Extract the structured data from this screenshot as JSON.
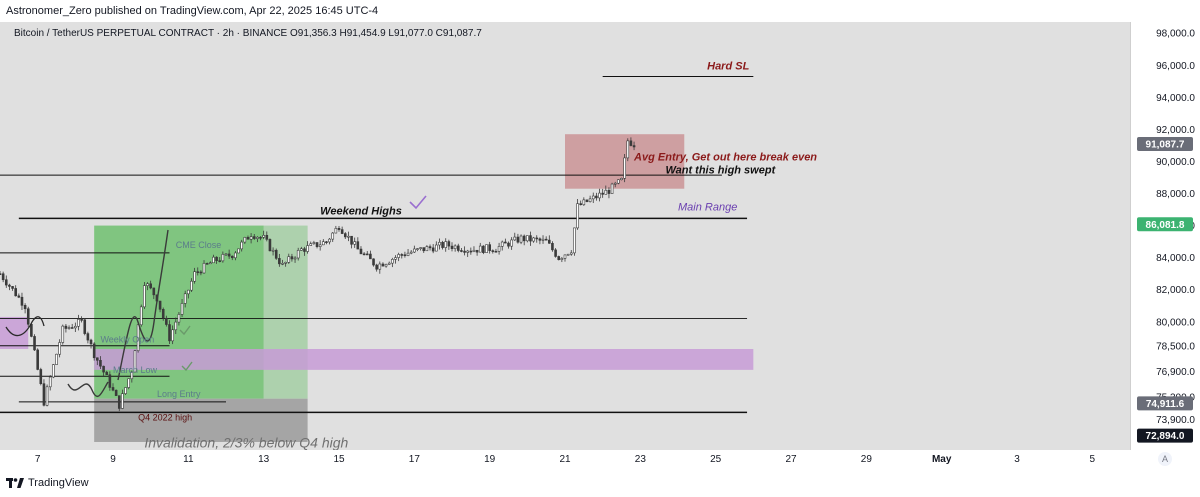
{
  "header": {
    "publisher_line": "Astronomer_Zero published on TradingView.com, Apr 22, 2025 16:45 UTC-4"
  },
  "chart_header": {
    "symbol_line": "Bitcoin / TetherUS PERPETUAL CONTRACT · 2h · BINANCE  O91,356.3  H91,454.9  L91,077.0  C91,087.7"
  },
  "footer": {
    "brand": "TradingView",
    "auto_label": "A"
  },
  "colors": {
    "chart_bg": "#e0e0e0",
    "candle": "#3a3a3a",
    "green_zone": "#6fbf6f",
    "red_zone": "#c98f91",
    "purple_zone": "#c79bd6",
    "gray_zone": "#9a9a9a",
    "annotation_red": "#8b1a1a",
    "annotation_purple": "#6a3fb0",
    "price_badge_dark": "#131722",
    "price_badge_gray": "#6a6d78",
    "price_badge_green": "#3cb371"
  },
  "chart_data": {
    "type": "candlestick",
    "title": "",
    "y_range": [
      72000,
      98700
    ],
    "y_ticks": [
      {
        "label": "98,000.0",
        "value": 98000
      },
      {
        "label": "96,000.0",
        "value": 96000
      },
      {
        "label": "94,000.0",
        "value": 94000
      },
      {
        "label": "92,000.0",
        "value": 92000
      },
      {
        "label": "90,000.0",
        "value": 90000
      },
      {
        "label": "88,000.0",
        "value": 88000
      },
      {
        "label": "86,000.0",
        "value": 86000
      },
      {
        "label": "84,000.0",
        "value": 84000
      },
      {
        "label": "82,000.0",
        "value": 82000
      },
      {
        "label": "80,000.0",
        "value": 80000
      },
      {
        "label": "78,500.0",
        "value": 78500
      },
      {
        "label": "76,900.0",
        "value": 76900
      },
      {
        "label": "75,300.0",
        "value": 75300
      },
      {
        "label": "73,900.0",
        "value": 73900
      }
    ],
    "price_badges": [
      {
        "label": "91,087.7",
        "value": 91087.7,
        "style": "gray"
      },
      {
        "label": "86,081.8",
        "value": 86081.8,
        "style": "green"
      },
      {
        "label": "74,911.6",
        "value": 74911.6,
        "style": "gray"
      },
      {
        "label": "72,894.0",
        "value": 72894.0,
        "style": "dark"
      }
    ],
    "x_range": [
      "2025-04-06",
      "2025-05-06"
    ],
    "x_ticks": [
      {
        "label": "7",
        "date": "2025-04-07"
      },
      {
        "label": "9",
        "date": "2025-04-09"
      },
      {
        "label": "11",
        "date": "2025-04-11"
      },
      {
        "label": "13",
        "date": "2025-04-13"
      },
      {
        "label": "15",
        "date": "2025-04-15"
      },
      {
        "label": "17",
        "date": "2025-04-17"
      },
      {
        "label": "19",
        "date": "2025-04-19"
      },
      {
        "label": "21",
        "date": "2025-04-21"
      },
      {
        "label": "23",
        "date": "2025-04-23"
      },
      {
        "label": "25",
        "date": "2025-04-25"
      },
      {
        "label": "27",
        "date": "2025-04-27"
      },
      {
        "label": "29",
        "date": "2025-04-29"
      },
      {
        "label": "May",
        "date": "2025-05-01"
      },
      {
        "label": "3",
        "date": "2025-05-03"
      },
      {
        "label": "5",
        "date": "2025-05-05"
      }
    ],
    "price_path": [
      [
        "2025-04-06T00:00",
        83000
      ],
      [
        "2025-04-06T16:00",
        81000
      ],
      [
        "2025-04-07T00:00",
        77000
      ],
      [
        "2025-04-07T04:00",
        75000
      ],
      [
        "2025-04-07T16:00",
        79500
      ],
      [
        "2025-04-08T04:00",
        80000
      ],
      [
        "2025-04-08T12:00",
        78000
      ],
      [
        "2025-04-08T20:00",
        76500
      ],
      [
        "2025-04-09T04:00",
        74800
      ],
      [
        "2025-04-09T12:00",
        77000
      ],
      [
        "2025-04-09T20:00",
        82500
      ],
      [
        "2025-04-10T04:00",
        81500
      ],
      [
        "2025-04-10T12:00",
        79000
      ],
      [
        "2025-04-10T20:00",
        81000
      ],
      [
        "2025-04-11T04:00",
        83000
      ],
      [
        "2025-04-11T16:00",
        83800
      ],
      [
        "2025-04-12T04:00",
        84200
      ],
      [
        "2025-04-12T16:00",
        85500
      ],
      [
        "2025-04-13T00:00",
        85200
      ],
      [
        "2025-04-13T12:00",
        83500
      ],
      [
        "2025-04-14T00:00",
        84500
      ],
      [
        "2025-04-14T16:00",
        85000
      ],
      [
        "2025-04-15T00:00",
        86000
      ],
      [
        "2025-04-15T12:00",
        84500
      ],
      [
        "2025-04-16T00:00",
        83500
      ],
      [
        "2025-04-16T16:00",
        84200
      ],
      [
        "2025-04-17T04:00",
        84500
      ],
      [
        "2025-04-17T20:00",
        84800
      ],
      [
        "2025-04-18T12:00",
        84500
      ],
      [
        "2025-04-19T04:00",
        84600
      ],
      [
        "2025-04-19T20:00",
        85200
      ],
      [
        "2025-04-20T12:00",
        85000
      ],
      [
        "2025-04-20T20:00",
        84000
      ],
      [
        "2025-04-21T04:00",
        84500
      ],
      [
        "2025-04-21T08:00",
        87200
      ],
      [
        "2025-04-21T20:00",
        87800
      ],
      [
        "2025-04-22T04:00",
        88200
      ],
      [
        "2025-04-22T12:00",
        88800
      ],
      [
        "2025-04-22T16:00",
        91300
      ],
      [
        "2025-04-22T20:00",
        91087.7
      ]
    ],
    "zones": [
      {
        "name": "green-zone",
        "color": "green",
        "x0": "2025-04-08T12:00",
        "x1": "2025-04-13T00:00",
        "y0": 75200,
        "y1": 86000
      },
      {
        "name": "green-zone-light",
        "color": "green_light",
        "x0": "2025-04-13T00:00",
        "x1": "2025-04-14T04:00",
        "y0": 75200,
        "y1": 86000
      },
      {
        "name": "gray-zone",
        "color": "gray",
        "x0": "2025-04-08T12:00",
        "x1": "2025-04-14T04:00",
        "y0": 72500,
        "y1": 75200
      },
      {
        "name": "red-zone",
        "color": "red",
        "x0": "2025-04-21T00:00",
        "x1": "2025-04-24T04:00",
        "y0": 88300,
        "y1": 91700
      },
      {
        "name": "purple-zone",
        "color": "purple",
        "x0": "2025-04-08T12:00",
        "x1": "2025-04-26T00:00",
        "y0": 77000,
        "y1": 78300
      },
      {
        "name": "purple-left-zone",
        "color": "purple",
        "x0": "2025-04-06T00:00",
        "x1": "2025-04-06T18:00",
        "y0": 78300,
        "y1": 80300
      }
    ],
    "levels": [
      {
        "name": "hard-sl-line",
        "y": 95300,
        "x0": "2025-04-22T00:00",
        "x1": "2025-04-26T00:00",
        "width": 1
      },
      {
        "name": "want-high-line",
        "y": 89150,
        "x0": "2025-04-06T00:00",
        "x1": "2025-04-25T04:00",
        "width": 1
      },
      {
        "name": "weekend-high-line",
        "y": 86450,
        "x0": "2025-04-06T12:00",
        "x1": "2025-04-25T20:00",
        "width": 1.5
      },
      {
        "name": "cme-close-line",
        "y": 84300,
        "x0": "2025-04-06T00:00",
        "x1": "2025-04-10T12:00",
        "width": 1
      },
      {
        "name": "range-line",
        "y": 80200,
        "x0": "2025-04-06T00:00",
        "x1": "2025-04-25T20:00",
        "width": 0.8
      },
      {
        "name": "weekly-open-line",
        "y": 78500,
        "x0": "2025-04-06T00:00",
        "x1": "2025-04-10T12:00",
        "width": 1
      },
      {
        "name": "march-low-line",
        "y": 76600,
        "x0": "2025-04-06T00:00",
        "x1": "2025-04-10T12:00",
        "width": 1
      },
      {
        "name": "long-entry-line",
        "y": 75000,
        "x0": "2025-04-06T12:00",
        "x1": "2025-04-12T00:00",
        "width": 1
      },
      {
        "name": "q4-high-line",
        "y": 74350,
        "x0": "2025-04-06T00:00",
        "x1": "2025-04-25T20:00",
        "width": 1.5
      }
    ],
    "annotations": [
      {
        "name": "hard-sl-label",
        "text": "Hard SL",
        "x": "2025-04-25T08:00",
        "y": 95750,
        "style": "red-italic",
        "anchor": "middle"
      },
      {
        "name": "avg-entry-label",
        "text": "Avg Entry, Get out here break even",
        "x": "2025-04-22T20:00",
        "y": 90050,
        "style": "red-italic",
        "anchor": "start"
      },
      {
        "name": "want-high-label",
        "text": "Want this high swept",
        "x": "2025-04-23T16:00",
        "y": 89250,
        "style": "black-italic",
        "anchor": "start"
      },
      {
        "name": "main-range-label",
        "text": "Main Range",
        "x": "2025-04-24T00:00",
        "y": 86950,
        "style": "purple-italic",
        "anchor": "start"
      },
      {
        "name": "weekend-highs-label",
        "text": "Weekend Highs",
        "x": "2025-04-14T12:00",
        "y": 86700,
        "style": "black-italic",
        "anchor": "start"
      },
      {
        "name": "cme-close-label",
        "text": "CME Close",
        "x": "2025-04-10T16:00",
        "y": 84600,
        "style": "faint",
        "anchor": "start"
      },
      {
        "name": "weekly-open-label",
        "text": "Weekly Open",
        "x": "2025-04-08T16:00",
        "y": 78700,
        "style": "faint",
        "anchor": "start"
      },
      {
        "name": "march-low-label",
        "text": "March Low",
        "x": "2025-04-09T00:00",
        "y": 76800,
        "style": "faint",
        "anchor": "start"
      },
      {
        "name": "long-entry-label",
        "text": "Long Entry",
        "x": "2025-04-10T04:00",
        "y": 75300,
        "style": "faint",
        "anchor": "start"
      },
      {
        "name": "q4-2022-high-label",
        "text": "Q4 2022 high",
        "x": "2025-04-09T16:00",
        "y": 73850,
        "style": "dark-red-small",
        "anchor": "start"
      },
      {
        "name": "invalidation-label",
        "text": "Invalidation, 2/3% below Q4 high",
        "x": "2025-04-09T20:00",
        "y": 72150,
        "style": "gray-italic-large",
        "anchor": "start"
      }
    ]
  }
}
